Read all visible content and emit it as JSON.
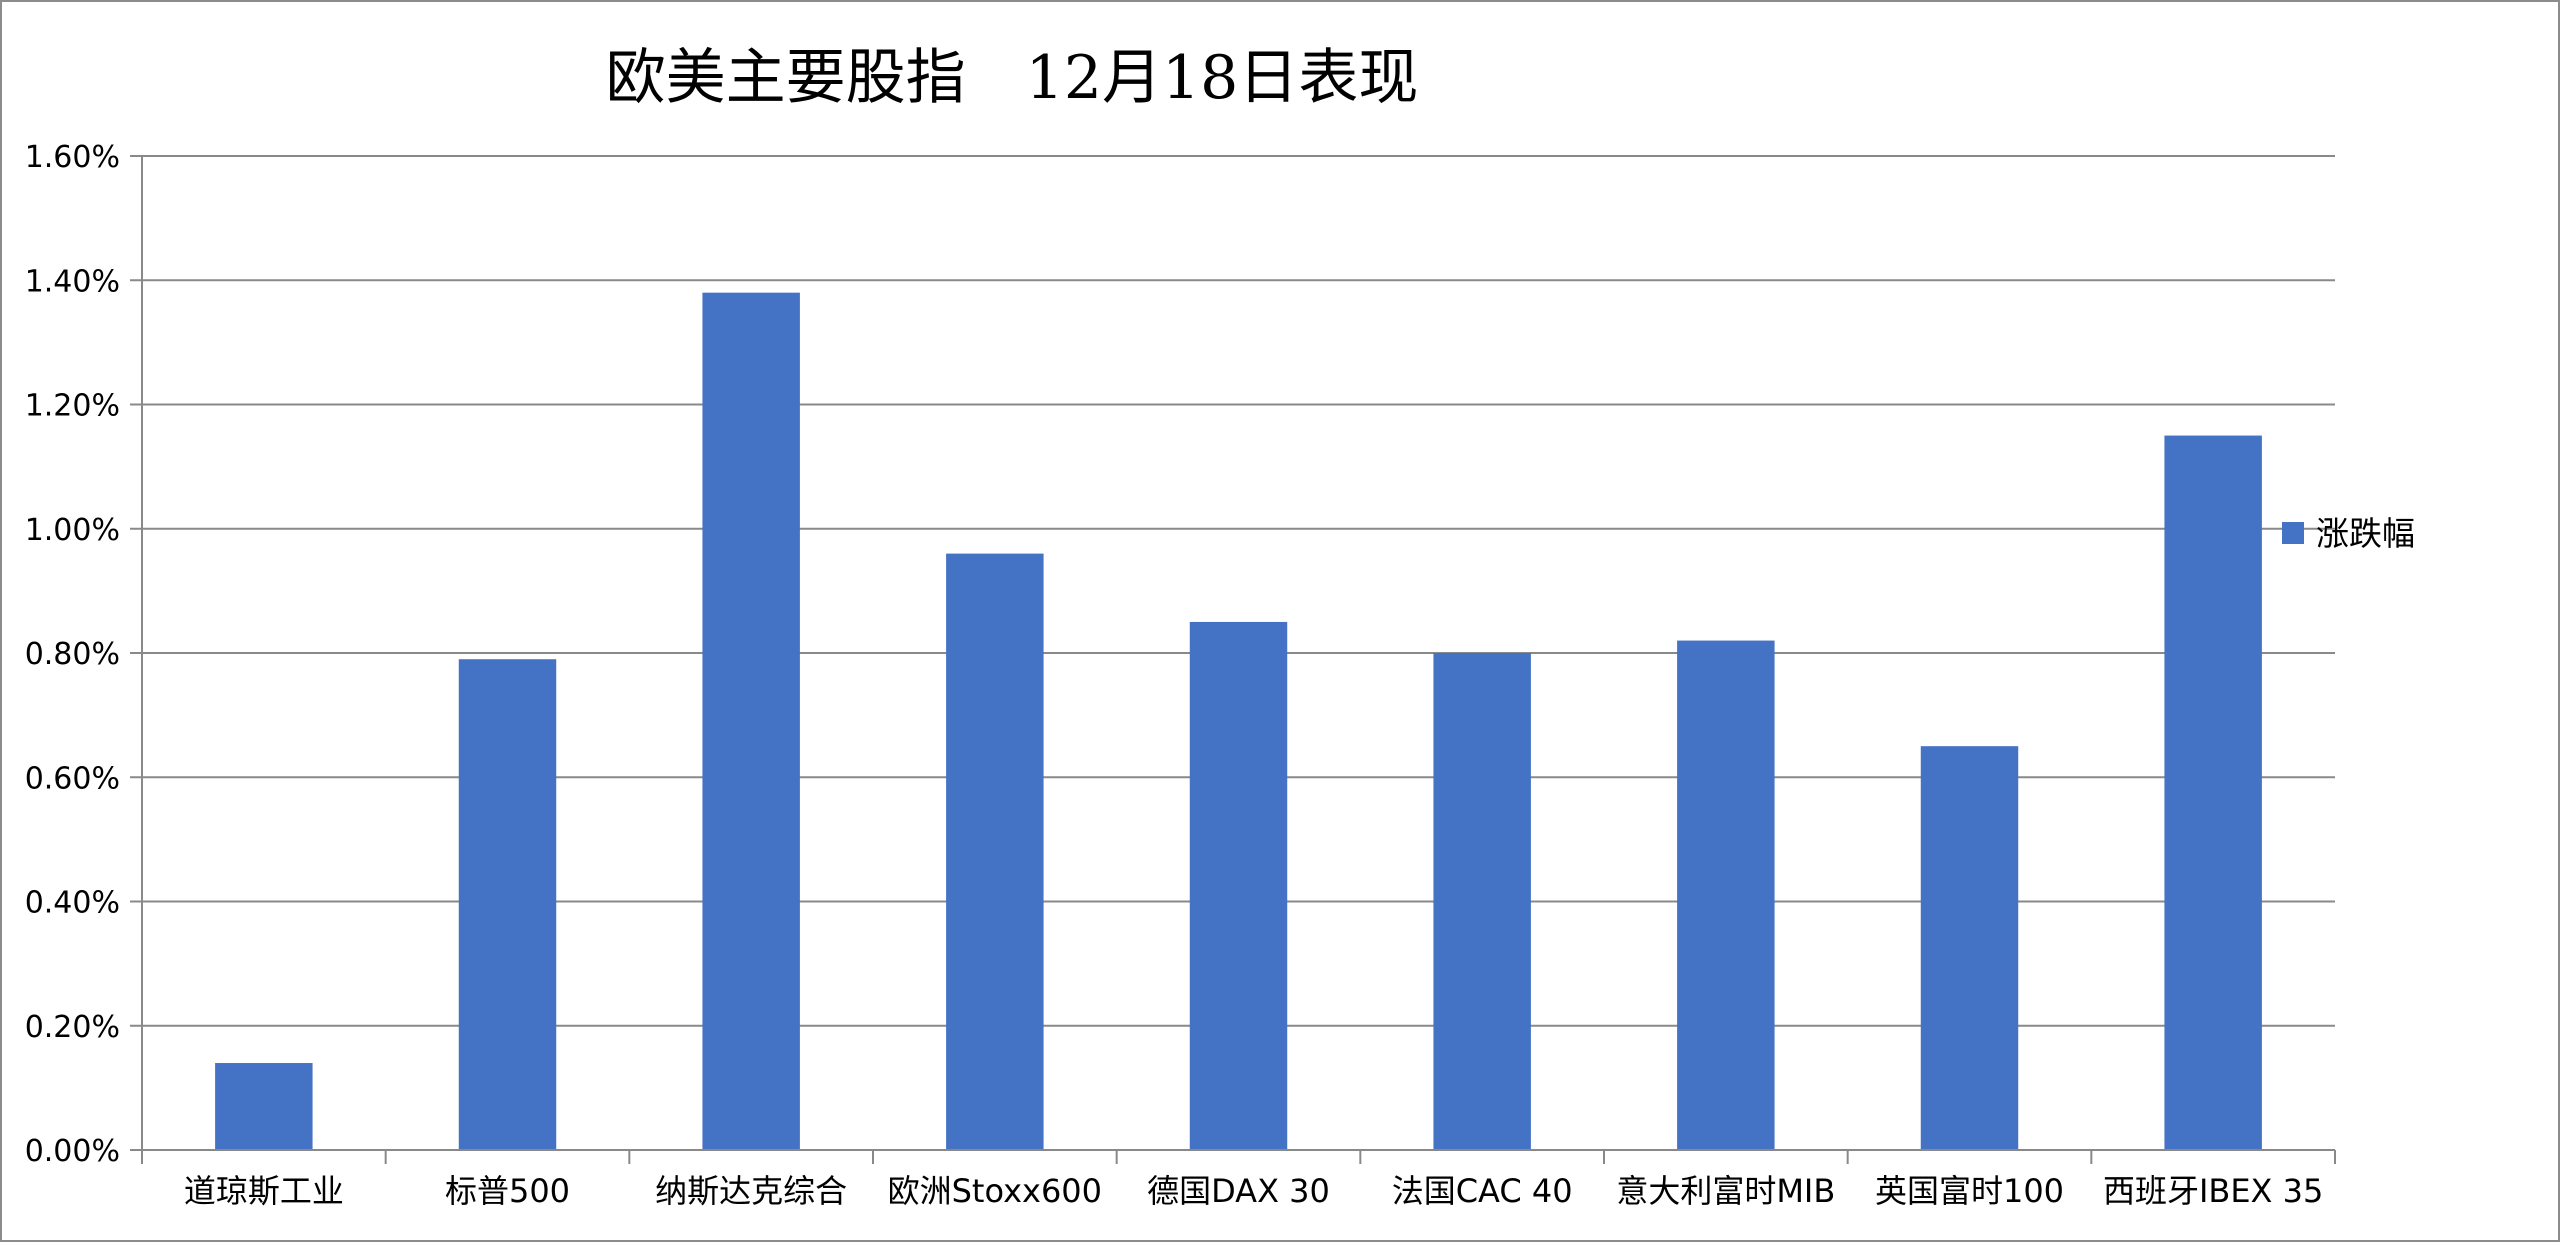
{
  "chart_data": {
    "type": "bar",
    "title": "欧美主要股指　12月18日表现",
    "categories": [
      "道琼斯工业",
      "标普500",
      "纳斯达克综合",
      "欧洲Stoxx600",
      "德国DAX 30",
      "法国CAC 40",
      "意大利富时MIB",
      "英国富时100",
      "西班牙IBEX 35"
    ],
    "series": [
      {
        "name": "涨跌幅",
        "values": [
          0.14,
          0.79,
          1.38,
          0.96,
          0.85,
          0.8,
          0.82,
          0.65,
          1.15
        ],
        "color": "#4472c4"
      }
    ],
    "yticks": [
      "0.00%",
      "0.20%",
      "0.40%",
      "0.60%",
      "0.80%",
      "1.00%",
      "1.20%",
      "1.40%",
      "1.60%"
    ],
    "ylim": [
      0,
      1.6
    ],
    "y_unit": "%",
    "xlabel": "",
    "ylabel": "",
    "grid": true,
    "legend_position": "right",
    "gridline_color": "#898989",
    "axis_color": "#898989"
  }
}
